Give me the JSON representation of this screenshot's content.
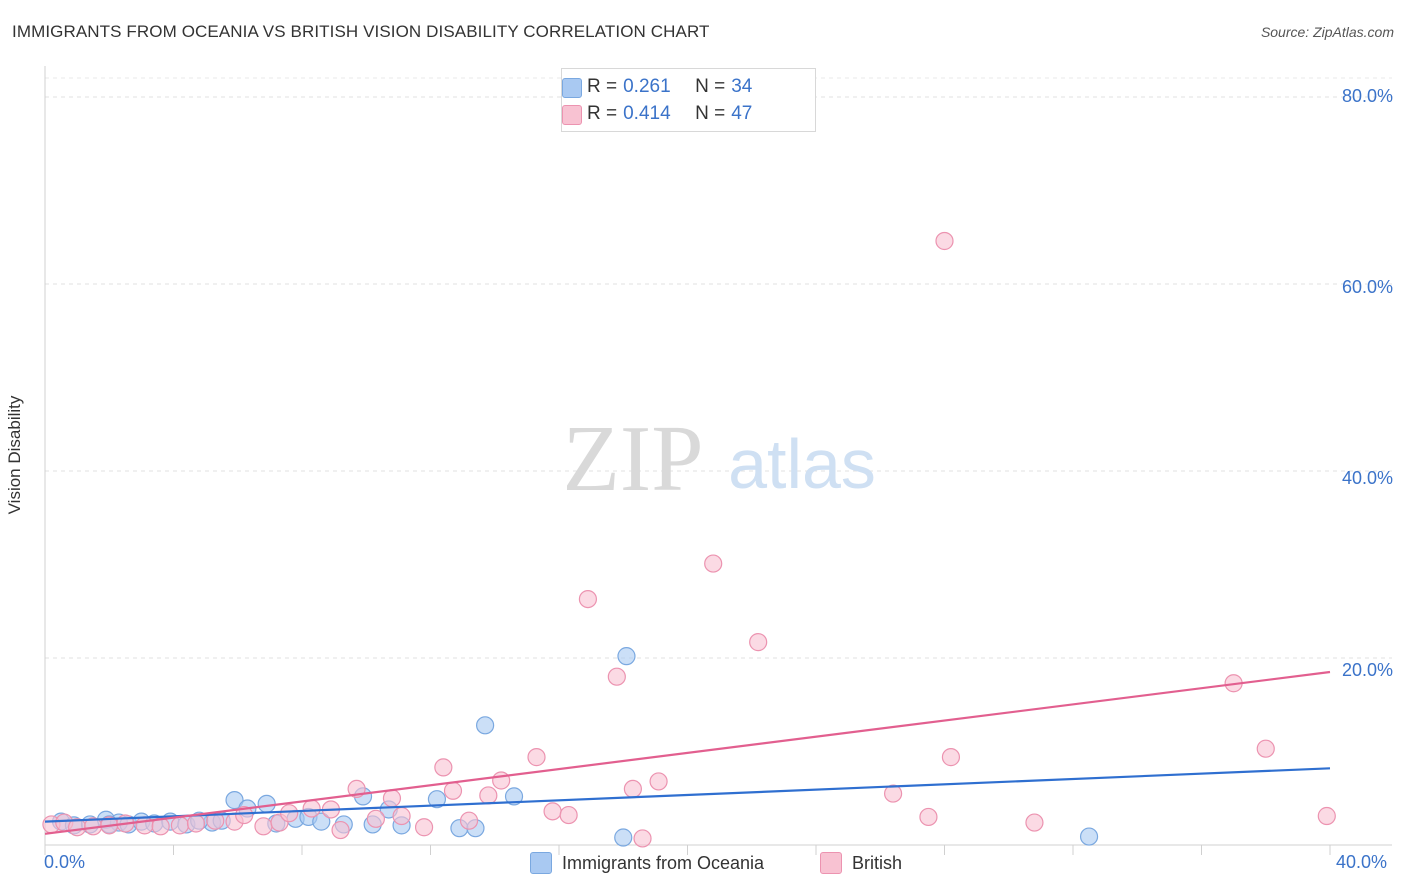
{
  "title": "IMMIGRANTS FROM OCEANIA VS BRITISH VISION DISABILITY CORRELATION CHART",
  "source": "Source: ZipAtlas.com",
  "watermark": {
    "zip": "ZIP",
    "atlas": "atlas"
  },
  "legend_top": [
    {
      "r_label": "R = ",
      "r_value": "0.261",
      "n_label": "N = ",
      "n_value": "34",
      "color": "#a9c9f2",
      "border": "#7aa8e0"
    },
    {
      "r_label": "R = ",
      "r_value": "0.414",
      "n_label": "N = ",
      "n_value": "47",
      "color": "#f8c2d2",
      "border": "#ec93b0"
    }
  ],
  "legend_bottom": [
    {
      "label": "Immigrants from Oceania",
      "color": "#a9c9f2",
      "border": "#7aa8e0"
    },
    {
      "label": "British",
      "color": "#f8c2d2",
      "border": "#ec93b0"
    }
  ],
  "chart_data": {
    "type": "scatter",
    "title": "IMMIGRANTS FROM OCEANIA VS BRITISH VISION DISABILITY CORRELATION CHART",
    "xlabel": "",
    "ylabel": "Vision Disability",
    "xlim": [
      0,
      40
    ],
    "ylim": [
      0,
      80
    ],
    "x_tick_labels": [
      "0.0%",
      "40.0%"
    ],
    "y_tick_labels": [
      "20.0%",
      "40.0%",
      "60.0%",
      "80.0%"
    ],
    "y_ticks": [
      20,
      40,
      60,
      80
    ],
    "grid": true,
    "series": [
      {
        "name": "Immigrants from Oceania",
        "color": "#7aa8e0",
        "fill": "#a9c9f2",
        "line_color": "#2f6fd0",
        "trend": {
          "x0": 0,
          "y0": 2.5,
          "x1": 40,
          "y1": 8.2
        },
        "points": [
          [
            0.5,
            2.5
          ],
          [
            0.9,
            2.1
          ],
          [
            1.4,
            2.2
          ],
          [
            1.9,
            2.7
          ],
          [
            2.3,
            2.4
          ],
          [
            2.6,
            2.2
          ],
          [
            3.0,
            2.5
          ],
          [
            3.4,
            2.3
          ],
          [
            3.9,
            2.5
          ],
          [
            4.4,
            2.2
          ],
          [
            5.2,
            2.4
          ],
          [
            5.5,
            2.6
          ],
          [
            5.9,
            4.8
          ],
          [
            6.3,
            3.9
          ],
          [
            6.9,
            4.4
          ],
          [
            7.2,
            2.3
          ],
          [
            7.8,
            2.8
          ],
          [
            8.2,
            3.0
          ],
          [
            8.6,
            2.5
          ],
          [
            9.3,
            2.2
          ],
          [
            9.9,
            5.2
          ],
          [
            10.2,
            2.2
          ],
          [
            10.7,
            3.8
          ],
          [
            11.1,
            2.1
          ],
          [
            12.2,
            4.9
          ],
          [
            12.9,
            1.8
          ],
          [
            13.4,
            1.8
          ],
          [
            13.7,
            12.8
          ],
          [
            14.6,
            5.2
          ],
          [
            18.1,
            20.2
          ],
          [
            18.0,
            0.8
          ],
          [
            32.5,
            0.9
          ],
          [
            4.8,
            2.6
          ],
          [
            2.0,
            2.2
          ]
        ]
      },
      {
        "name": "British",
        "color": "#ec93b0",
        "fill": "#f8c2d2",
        "line_color": "#e25f8f",
        "trend": {
          "x0": 0,
          "y0": 1.2,
          "x1": 40,
          "y1": 18.5
        },
        "points": [
          [
            0.2,
            2.2
          ],
          [
            0.6,
            2.4
          ],
          [
            1.0,
            1.9
          ],
          [
            1.5,
            2.0
          ],
          [
            2.0,
            2.1
          ],
          [
            2.5,
            2.3
          ],
          [
            3.1,
            2.1
          ],
          [
            3.6,
            2.0
          ],
          [
            4.2,
            2.1
          ],
          [
            4.7,
            2.3
          ],
          [
            5.3,
            2.6
          ],
          [
            5.9,
            2.5
          ],
          [
            6.2,
            3.2
          ],
          [
            6.8,
            2.0
          ],
          [
            7.3,
            2.4
          ],
          [
            7.6,
            3.4
          ],
          [
            8.3,
            3.9
          ],
          [
            8.9,
            3.8
          ],
          [
            9.2,
            1.6
          ],
          [
            9.7,
            6.0
          ],
          [
            10.3,
            2.8
          ],
          [
            10.8,
            5.0
          ],
          [
            11.1,
            3.1
          ],
          [
            11.8,
            1.9
          ],
          [
            12.4,
            8.3
          ],
          [
            12.7,
            5.8
          ],
          [
            13.2,
            2.6
          ],
          [
            13.8,
            5.3
          ],
          [
            14.2,
            6.9
          ],
          [
            15.3,
            9.4
          ],
          [
            15.8,
            3.6
          ],
          [
            16.3,
            3.2
          ],
          [
            16.9,
            26.3
          ],
          [
            17.8,
            18.0
          ],
          [
            18.3,
            6.0
          ],
          [
            18.6,
            0.7
          ],
          [
            19.1,
            6.8
          ],
          [
            20.8,
            30.1
          ],
          [
            22.2,
            21.7
          ],
          [
            26.4,
            5.5
          ],
          [
            27.5,
            3.0
          ],
          [
            28.0,
            64.6
          ],
          [
            28.2,
            9.4
          ],
          [
            30.8,
            2.4
          ],
          [
            37.0,
            17.3
          ],
          [
            38.0,
            10.3
          ],
          [
            39.9,
            3.1
          ]
        ]
      }
    ]
  }
}
